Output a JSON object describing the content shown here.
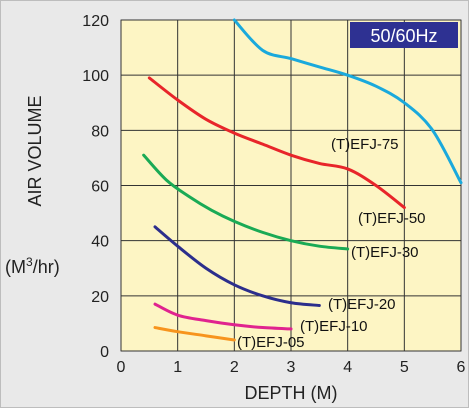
{
  "chart_data": {
    "type": "line",
    "title": "",
    "badge": "50/60Hz",
    "xlabel": "DEPTH (M)",
    "ylabel": "AIR VOLUME",
    "yunit": "(M3/hr)",
    "xlim": [
      0,
      6
    ],
    "ylim": [
      0,
      120
    ],
    "xticks": [
      0,
      1,
      2,
      3,
      4,
      5,
      6
    ],
    "yticks": [
      0,
      20,
      40,
      60,
      80,
      100,
      120
    ],
    "grid": true,
    "series": [
      {
        "name": "(T)EFJ-75",
        "color": "#1aa9dc",
        "x": [
          2.0,
          2.5,
          3.0,
          3.5,
          4.0,
          4.5,
          5.0,
          5.5,
          6.0
        ],
        "y": [
          120,
          109,
          106,
          103,
          100,
          96,
          90,
          80,
          61
        ]
      },
      {
        "name": "(T)EFJ-50",
        "color": "#e8252a",
        "x": [
          0.5,
          1.0,
          1.5,
          2.0,
          2.5,
          3.0,
          3.5,
          4.0,
          4.5,
          5.0
        ],
        "y": [
          99,
          91,
          84,
          79,
          75,
          71,
          68,
          66,
          60,
          52
        ]
      },
      {
        "name": "(T)EFJ-30",
        "color": "#1aaa55",
        "x": [
          0.4,
          0.8,
          1.2,
          1.6,
          2.0,
          2.5,
          3.0,
          3.5,
          4.0
        ],
        "y": [
          71,
          62,
          56,
          51,
          47,
          43,
          40,
          38,
          37
        ]
      },
      {
        "name": "(T)EFJ-20",
        "color": "#2c2e8c",
        "x": [
          0.6,
          1.0,
          1.5,
          2.0,
          2.5,
          3.0,
          3.5
        ],
        "y": [
          45,
          38,
          30,
          24,
          20,
          17.5,
          16.5
        ]
      },
      {
        "name": "(T)EFJ-10",
        "color": "#e0238f",
        "x": [
          0.6,
          1.0,
          1.5,
          2.0,
          2.5,
          3.0
        ],
        "y": [
          17,
          13,
          11,
          9.5,
          8.5,
          8
        ]
      },
      {
        "name": "(T)EFJ-05",
        "color": "#f7941d",
        "x": [
          0.6,
          1.0,
          1.5,
          2.0
        ],
        "y": [
          8.5,
          7,
          5.5,
          4
        ]
      }
    ]
  }
}
